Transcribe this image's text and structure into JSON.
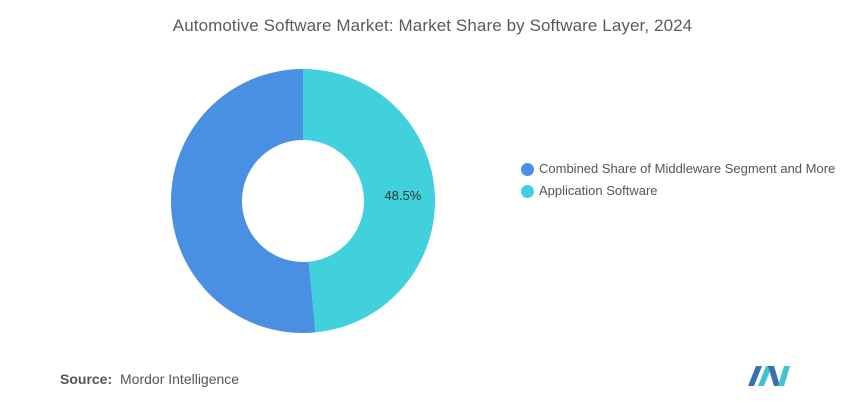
{
  "chart_data": {
    "type": "pie",
    "title": "Automotive Software Market: Market Share by Software Layer, 2024",
    "donut": true,
    "slices": [
      {
        "label": "Combined Share of Middleware Segment and More",
        "value": 51.5,
        "color": "#4a90e2",
        "data_label": ""
      },
      {
        "label": "Application Software",
        "value": 48.5,
        "color": "#40d1dc",
        "data_label": "48.5%"
      }
    ],
    "legend_position": "right"
  },
  "source": {
    "key": "Source:",
    "value": "Mordor Intelligence"
  },
  "logo": {
    "icon": "mordor-intelligence-logo",
    "colors": [
      "#3a6fb0",
      "#40c4cf"
    ]
  }
}
